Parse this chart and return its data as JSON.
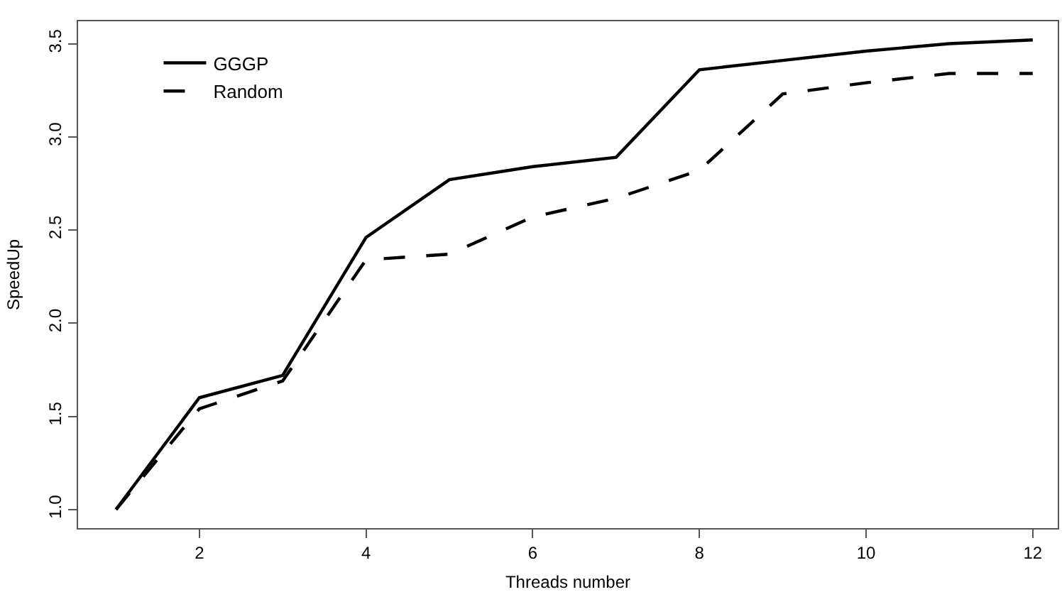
{
  "chart_data": {
    "type": "line",
    "xlabel": "Threads number",
    "ylabel": "SpeedUp",
    "x": [
      1,
      2,
      3,
      4,
      5,
      6,
      7,
      8,
      9,
      10,
      11,
      12
    ],
    "series": [
      {
        "name": "GGGP",
        "color": "#000000",
        "line_style": "solid",
        "values": [
          1.0,
          1.6,
          1.72,
          2.46,
          2.77,
          2.84,
          2.89,
          3.36,
          3.41,
          3.46,
          3.5,
          3.52
        ]
      },
      {
        "name": "Random",
        "color": "#000000",
        "line_style": "dashed",
        "values": [
          1.0,
          1.54,
          1.69,
          2.34,
          2.37,
          2.57,
          2.67,
          2.82,
          3.23,
          3.29,
          3.34,
          3.34
        ]
      }
    ],
    "xlim": [
      0.545,
      12.3
    ],
    "ylim": [
      0.9,
      3.62
    ],
    "xticks": [
      2,
      4,
      6,
      8,
      10,
      12
    ],
    "yticks": [
      {
        "value": 1,
        "label": "1.0"
      },
      1.5,
      {
        "value": 2,
        "label": "2.0"
      },
      2.5,
      {
        "value": 3,
        "label": "3.0"
      },
      3.5
    ],
    "legend": "top left",
    "marker": "none"
  }
}
